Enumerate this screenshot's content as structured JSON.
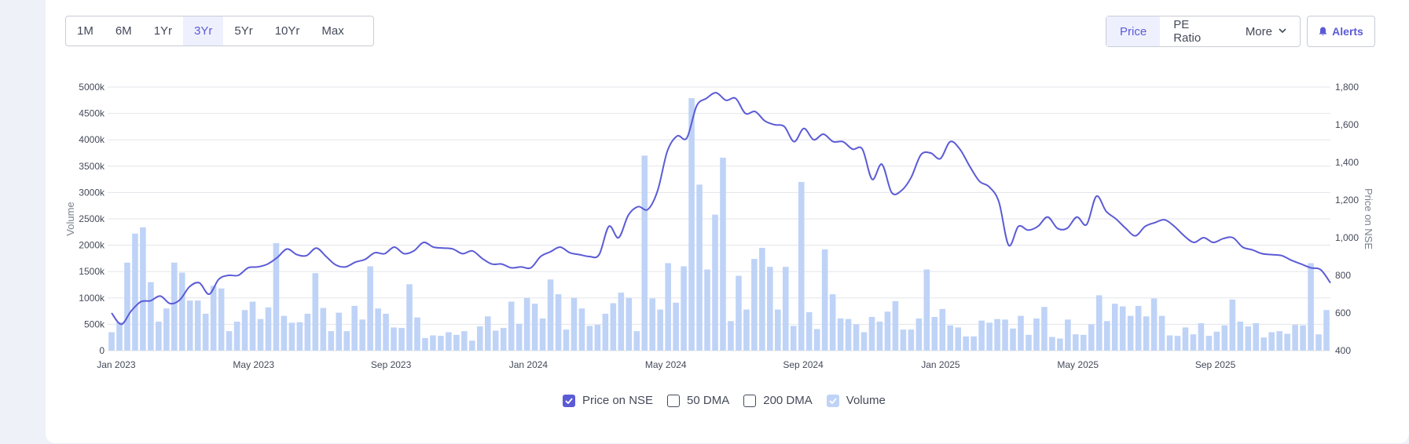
{
  "toolbar": {
    "ranges": [
      "1M",
      "6M",
      "1Yr",
      "3Yr",
      "5Yr",
      "10Yr",
      "Max"
    ],
    "active_range": "3Yr",
    "metrics": [
      "Price",
      "PE Ratio",
      "More"
    ],
    "active_metric": "Price",
    "alerts_label": "Alerts"
  },
  "legend": {
    "price": "Price on NSE",
    "dma50": "50 DMA",
    "dma200": "200 DMA",
    "volume": "Volume"
  },
  "colors": {
    "price_line": "#5b5bd6",
    "volume_bar": "#bfd3f7",
    "grid": "#e3e5ea",
    "axis_text": "#444a59"
  },
  "chart_data": {
    "type": "bar+line",
    "ylabel": "Volume",
    "y2label": "Price on NSE",
    "ylim": [
      0,
      5000
    ],
    "y2lim": [
      400,
      1800
    ],
    "yticks": [
      "0",
      "500k",
      "1000k",
      "1500k",
      "2000k",
      "2500k",
      "3000k",
      "3500k",
      "4000k",
      "4500k",
      "5000k"
    ],
    "y2ticks": [
      "400",
      "600",
      "800",
      "1,000",
      "1,200",
      "1,400",
      "1,600",
      "1,800"
    ],
    "xticks": [
      "Jan 2023",
      "May 2023",
      "Sep 2023",
      "Jan 2024",
      "May 2024",
      "Sep 2024",
      "Jan 2025",
      "May 2025",
      "Sep 2025"
    ],
    "x_start": "Dec 2022",
    "x_end": "Dec 2025",
    "volume_k": [
      350,
      540,
      1670,
      2220,
      2340,
      1300,
      550,
      800,
      1670,
      1480,
      950,
      950,
      700,
      1230,
      1180,
      370,
      550,
      770,
      930,
      600,
      820,
      2040,
      660,
      530,
      540,
      700,
      1470,
      810,
      370,
      720,
      370,
      850,
      590,
      1600,
      800,
      700,
      440,
      430,
      1260,
      630,
      240,
      290,
      280,
      350,
      300,
      370,
      190,
      460,
      650,
      380,
      430,
      930,
      510,
      1000,
      890,
      610,
      1350,
      1070,
      400,
      1000,
      800,
      470,
      490,
      700,
      900,
      1100,
      1000,
      370,
      3700,
      990,
      780,
      1660,
      910,
      1600,
      4790,
      3150,
      1540,
      2580,
      3660,
      560,
      1420,
      780,
      1740,
      1950,
      1590,
      780,
      1590,
      470,
      3200,
      730,
      410,
      1920,
      1070,
      610,
      600,
      500,
      350,
      640,
      550,
      740,
      940,
      400,
      400,
      610,
      1540,
      640,
      790,
      480,
      440,
      270,
      270,
      570,
      530,
      600,
      590,
      420,
      660,
      300,
      610,
      830,
      260,
      230,
      590,
      310,
      300,
      500,
      1050,
      560,
      890,
      840,
      660,
      850,
      650,
      990,
      660,
      290,
      280,
      440,
      310,
      520,
      280,
      360,
      480,
      970,
      550,
      460,
      520,
      250,
      350,
      370,
      320,
      490,
      480,
      1660,
      310,
      770
    ],
    "price": [
      [
        "Dec 2022",
        600
      ],
      [
        "Jan 2023",
        540
      ],
      [
        "Jan 2023",
        610
      ],
      [
        "Feb 2023",
        660
      ],
      [
        "Feb 2023",
        665
      ],
      [
        "Feb 2023",
        690
      ],
      [
        "Mar 2023",
        650
      ],
      [
        "Mar 2023",
        670
      ],
      [
        "Mar 2023",
        740
      ],
      [
        "Apr 2023",
        760
      ],
      [
        "Apr 2023",
        700
      ],
      [
        "Apr 2023",
        780
      ],
      [
        "May 2023",
        800
      ],
      [
        "May 2023",
        800
      ],
      [
        "May 2023",
        840
      ],
      [
        "Jun 2023",
        845
      ],
      [
        "Jun 2023",
        860
      ],
      [
        "Jun 2023",
        895
      ],
      [
        "Jun 2023",
        940
      ],
      [
        "Jul 2023",
        910
      ],
      [
        "Jul 2023",
        905
      ],
      [
        "Jul 2023",
        945
      ],
      [
        "Aug 2023",
        900
      ],
      [
        "Aug 2023",
        855
      ],
      [
        "Aug 2023",
        845
      ],
      [
        "Aug 2023",
        870
      ],
      [
        "Sep 2023",
        885
      ],
      [
        "Sep 2023",
        920
      ],
      [
        "Sep 2023",
        915
      ],
      [
        "Sep 2023",
        950
      ],
      [
        "Oct 2023",
        915
      ],
      [
        "Oct 2023",
        930
      ],
      [
        "Oct 2023",
        975
      ],
      [
        "Oct 2023",
        950
      ],
      [
        "Nov 2023",
        945
      ],
      [
        "Nov 2023",
        940
      ],
      [
        "Nov 2023",
        915
      ],
      [
        "Dec 2023",
        930
      ],
      [
        "Dec 2023",
        890
      ],
      [
        "Dec 2023",
        860
      ],
      [
        "Jan 2024",
        860
      ],
      [
        "Jan 2024",
        840
      ],
      [
        "Jan 2024",
        845
      ],
      [
        "Feb 2024",
        840
      ],
      [
        "Feb 2024",
        900
      ],
      [
        "Feb 2024",
        925
      ],
      [
        "Mar 2024",
        950
      ],
      [
        "Mar 2024",
        920
      ],
      [
        "Mar 2024",
        910
      ],
      [
        "Apr 2024",
        900
      ],
      [
        "Apr 2024",
        910
      ],
      [
        "Apr 2024",
        1060
      ],
      [
        "May 2024",
        1000
      ],
      [
        "May 2024",
        1120
      ],
      [
        "May 2024",
        1165
      ],
      [
        "May 2024",
        1150
      ],
      [
        "Jun 2024",
        1250
      ],
      [
        "Jun 2024",
        1460
      ],
      [
        "Jun 2024",
        1540
      ],
      [
        "Jun 2024",
        1530
      ],
      [
        "Jul 2024",
        1700
      ],
      [
        "Jul 2024",
        1740
      ],
      [
        "Jul 2024",
        1770
      ],
      [
        "Jul 2024",
        1730
      ],
      [
        "Aug 2024",
        1740
      ],
      [
        "Aug 2024",
        1660
      ],
      [
        "Aug 2024",
        1670
      ],
      [
        "Aug 2024",
        1620
      ],
      [
        "Sep 2024",
        1600
      ],
      [
        "Sep 2024",
        1590
      ],
      [
        "Sep 2024",
        1510
      ],
      [
        "Sep 2024",
        1580
      ],
      [
        "Oct 2024",
        1520
      ],
      [
        "Oct 2024",
        1550
      ],
      [
        "Oct 2024",
        1510
      ],
      [
        "Oct 2024",
        1510
      ],
      [
        "Nov 2024",
        1470
      ],
      [
        "Nov 2024",
        1470
      ],
      [
        "Nov 2024",
        1310
      ],
      [
        "Nov 2024",
        1390
      ],
      [
        "Dec 2024",
        1240
      ],
      [
        "Dec 2024",
        1250
      ],
      [
        "Dec 2024",
        1320
      ],
      [
        "Dec 2024",
        1440
      ],
      [
        "Jan 2025",
        1450
      ],
      [
        "Jan 2025",
        1420
      ],
      [
        "Jan 2025",
        1510
      ],
      [
        "Jan 2025",
        1470
      ],
      [
        "Feb 2025",
        1380
      ],
      [
        "Feb 2025",
        1300
      ],
      [
        "Feb 2025",
        1270
      ],
      [
        "Feb 2025",
        1190
      ],
      [
        "Mar 2025",
        960
      ],
      [
        "Mar 2025",
        1060
      ],
      [
        "Mar 2025",
        1040
      ],
      [
        "Mar 2025",
        1060
      ],
      [
        "Apr 2025",
        1110
      ],
      [
        "Apr 2025",
        1050
      ],
      [
        "Apr 2025",
        1050
      ],
      [
        "Apr 2025",
        1110
      ],
      [
        "May 2025",
        1070
      ],
      [
        "May 2025",
        1220
      ],
      [
        "May 2025",
        1140
      ],
      [
        "May 2025",
        1100
      ],
      [
        "Jun 2025",
        1050
      ],
      [
        "Jun 2025",
        1010
      ],
      [
        "Jun 2025",
        1060
      ],
      [
        "Jun 2025",
        1080
      ],
      [
        "Jul 2025",
        1095
      ],
      [
        "Jul 2025",
        1060
      ],
      [
        "Jul 2025",
        1010
      ],
      [
        "Jul 2025",
        975
      ],
      [
        "Aug 2025",
        1000
      ],
      [
        "Aug 2025",
        975
      ],
      [
        "Aug 2025",
        995
      ],
      [
        "Sep 2025",
        1000
      ],
      [
        "Sep 2025",
        950
      ],
      [
        "Sep 2025",
        935
      ],
      [
        "Sep 2025",
        915
      ],
      [
        "Oct 2025",
        910
      ],
      [
        "Oct 2025",
        905
      ],
      [
        "Oct 2025",
        880
      ],
      [
        "Nov 2025",
        860
      ],
      [
        "Nov 2025",
        840
      ],
      [
        "Nov 2025",
        830
      ],
      [
        "Dec 2025",
        760
      ]
    ]
  }
}
